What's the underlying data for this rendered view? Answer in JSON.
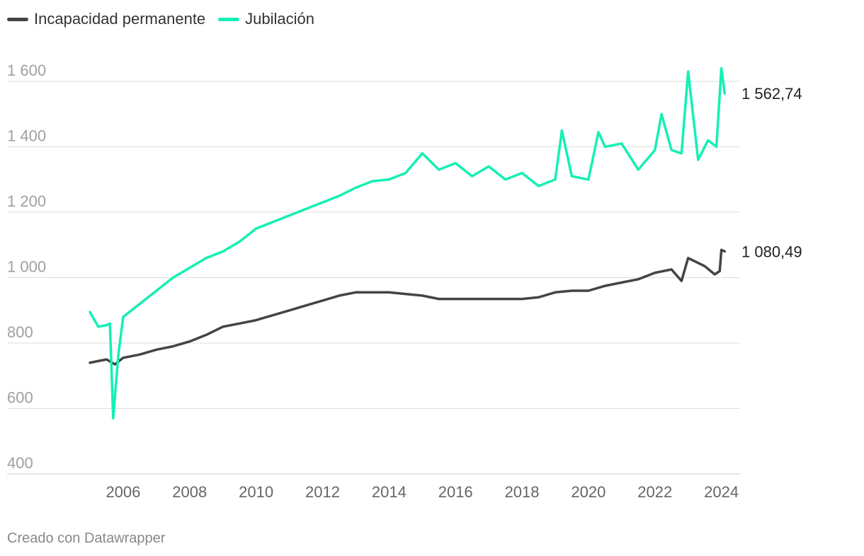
{
  "colors": {
    "incapacidad": "#444444",
    "jubilacion": "#14F0B4",
    "grid": "#dddddd",
    "tick": "#a0a0a0",
    "xtick": "#666666"
  },
  "legend": [
    {
      "label": "Incapacidad permanente",
      "color": "#444444"
    },
    {
      "label": "Jubilación",
      "color": "#14F0B4"
    }
  ],
  "footer": "Creado con Datawrapper",
  "chart_data": {
    "type": "line",
    "title": "",
    "xlabel": "",
    "ylabel": "",
    "ylim": [
      400,
      1600
    ],
    "xlim": [
      2005.0,
      2024.2
    ],
    "y_ticks": [
      400,
      600,
      800,
      1000,
      1200,
      1400,
      1600
    ],
    "y_tick_labels": [
      "400",
      "600",
      "800",
      "1 000",
      "1 200",
      "1 400",
      "1 600"
    ],
    "x_ticks": [
      2006,
      2008,
      2010,
      2012,
      2014,
      2016,
      2018,
      2020,
      2022,
      2024
    ],
    "x_tick_labels": [
      "2006",
      "2008",
      "2010",
      "2012",
      "2014",
      "2016",
      "2018",
      "2020",
      "2022",
      "2024"
    ],
    "grid": true,
    "legend_position": "top-left",
    "series": [
      {
        "name": "Incapacidad permanente",
        "color": "#444444",
        "end_label": "1 080,49",
        "points": [
          [
            2005.0,
            740
          ],
          [
            2005.25,
            745
          ],
          [
            2005.5,
            750
          ],
          [
            2005.75,
            735
          ],
          [
            2006.0,
            755
          ],
          [
            2006.5,
            765
          ],
          [
            2007.0,
            780
          ],
          [
            2007.5,
            790
          ],
          [
            2008.0,
            805
          ],
          [
            2008.5,
            825
          ],
          [
            2009.0,
            850
          ],
          [
            2009.5,
            860
          ],
          [
            2010.0,
            870
          ],
          [
            2010.5,
            885
          ],
          [
            2011.0,
            900
          ],
          [
            2011.5,
            915
          ],
          [
            2012.0,
            930
          ],
          [
            2012.5,
            945
          ],
          [
            2013.0,
            955
          ],
          [
            2013.5,
            955
          ],
          [
            2014.0,
            955
          ],
          [
            2014.5,
            950
          ],
          [
            2015.0,
            945
          ],
          [
            2015.5,
            935
          ],
          [
            2016.0,
            935
          ],
          [
            2016.5,
            935
          ],
          [
            2017.0,
            935
          ],
          [
            2017.5,
            935
          ],
          [
            2018.0,
            935
          ],
          [
            2018.5,
            940
          ],
          [
            2019.0,
            955
          ],
          [
            2019.5,
            960
          ],
          [
            2020.0,
            960
          ],
          [
            2020.5,
            975
          ],
          [
            2021.0,
            985
          ],
          [
            2021.5,
            995
          ],
          [
            2022.0,
            1015
          ],
          [
            2022.5,
            1025
          ],
          [
            2022.8,
            990
          ],
          [
            2023.0,
            1060
          ],
          [
            2023.5,
            1035
          ],
          [
            2023.8,
            1010
          ],
          [
            2023.95,
            1020
          ],
          [
            2024.0,
            1085
          ],
          [
            2024.1,
            1080.49
          ]
        ]
      },
      {
        "name": "Jubilación",
        "color": "#14F0B4",
        "end_label": "1 562,74",
        "points": [
          [
            2005.0,
            895
          ],
          [
            2005.25,
            850
          ],
          [
            2005.5,
            855
          ],
          [
            2005.6,
            860
          ],
          [
            2005.7,
            570
          ],
          [
            2005.85,
            760
          ],
          [
            2006.0,
            880
          ],
          [
            2006.5,
            920
          ],
          [
            2007.0,
            960
          ],
          [
            2007.5,
            1000
          ],
          [
            2008.0,
            1030
          ],
          [
            2008.5,
            1060
          ],
          [
            2009.0,
            1080
          ],
          [
            2009.5,
            1110
          ],
          [
            2010.0,
            1150
          ],
          [
            2010.5,
            1170
          ],
          [
            2011.0,
            1190
          ],
          [
            2011.5,
            1210
          ],
          [
            2012.0,
            1230
          ],
          [
            2012.5,
            1250
          ],
          [
            2013.0,
            1275
          ],
          [
            2013.5,
            1295
          ],
          [
            2014.0,
            1300
          ],
          [
            2014.5,
            1320
          ],
          [
            2015.0,
            1380
          ],
          [
            2015.5,
            1330
          ],
          [
            2016.0,
            1350
          ],
          [
            2016.5,
            1310
          ],
          [
            2017.0,
            1340
          ],
          [
            2017.5,
            1300
          ],
          [
            2018.0,
            1320
          ],
          [
            2018.5,
            1280
          ],
          [
            2019.0,
            1300
          ],
          [
            2019.2,
            1450
          ],
          [
            2019.5,
            1310
          ],
          [
            2020.0,
            1300
          ],
          [
            2020.3,
            1445
          ],
          [
            2020.5,
            1400
          ],
          [
            2021.0,
            1410
          ],
          [
            2021.5,
            1330
          ],
          [
            2022.0,
            1390
          ],
          [
            2022.2,
            1500
          ],
          [
            2022.5,
            1390
          ],
          [
            2022.8,
            1380
          ],
          [
            2023.0,
            1630
          ],
          [
            2023.3,
            1360
          ],
          [
            2023.6,
            1420
          ],
          [
            2023.85,
            1400
          ],
          [
            2024.0,
            1640
          ],
          [
            2024.1,
            1562.74
          ]
        ]
      }
    ]
  }
}
